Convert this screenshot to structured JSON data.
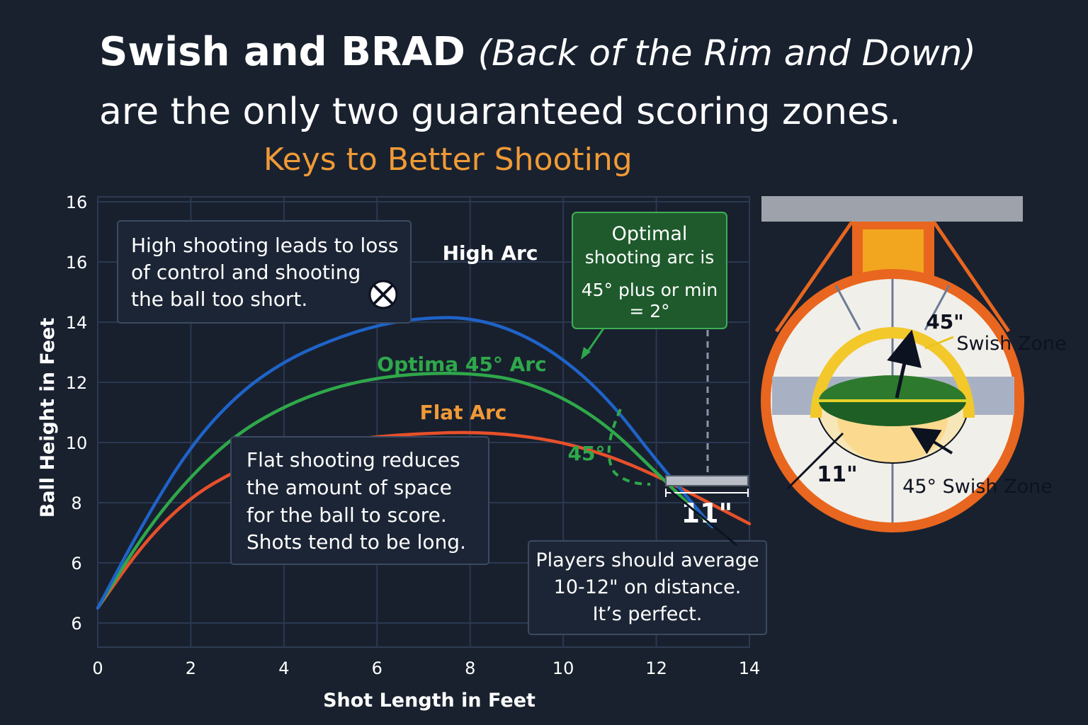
{
  "header": {
    "title_bold": "Swish and BRAD",
    "title_italic": "(Back of the Rim and Down)",
    "title_line2": "are the only two guaranteed scoring zones.",
    "subtitle": "Keys to Better Shooting"
  },
  "colors": {
    "background": "#19212f",
    "grid": "#2a3850",
    "high": "#1f63c8",
    "optimal": "#2fa84a",
    "flat": "#e8502a",
    "orange_text": "#f09a36",
    "green_box": "#1e5a2c",
    "rim": "#e8661f",
    "swish_zone": "#f2c82a"
  },
  "chart_data": {
    "type": "line",
    "xlabel": "Shot Length in Feet",
    "ylabel": "Ball Height in Feet",
    "xlim": [
      0,
      14
    ],
    "x_ticks": [
      "0",
      "2",
      "4",
      "6",
      "8",
      "10",
      "12",
      "14"
    ],
    "y_tick_labels": [
      "6",
      "6",
      "8",
      "10",
      "12",
      "14",
      "16",
      "16"
    ],
    "grid": true,
    "series": [
      {
        "name": "High Arc",
        "color_key": "high",
        "points": [
          [
            0,
            6.5
          ],
          [
            1,
            9.4
          ],
          [
            2,
            11.9
          ],
          [
            3,
            13.6
          ],
          [
            4,
            14.7
          ],
          [
            5,
            15.4
          ],
          [
            6,
            15.9
          ],
          [
            7,
            16.15
          ],
          [
            8,
            16.15
          ],
          [
            9,
            15.7
          ],
          [
            10,
            14.8
          ],
          [
            11,
            13.4
          ],
          [
            12,
            11.4
          ],
          [
            13.2,
            9.2
          ]
        ]
      },
      {
        "name": "Optima 45° Arc",
        "color_key": "optimal",
        "points": [
          [
            0,
            6.5
          ],
          [
            1,
            9.0
          ],
          [
            2,
            10.9
          ],
          [
            3,
            12.3
          ],
          [
            4,
            13.2
          ],
          [
            5,
            13.8
          ],
          [
            6,
            14.15
          ],
          [
            7,
            14.3
          ],
          [
            8,
            14.3
          ],
          [
            9,
            14.1
          ],
          [
            10,
            13.5
          ],
          [
            11,
            12.5
          ],
          [
            12,
            11.0
          ],
          [
            13.2,
            9.2
          ]
        ]
      },
      {
        "name": "Flat Arc",
        "color_key": "flat",
        "points": [
          [
            0,
            6.5
          ],
          [
            1,
            8.7
          ],
          [
            2,
            10.2
          ],
          [
            3,
            11.1
          ],
          [
            4,
            11.7
          ],
          [
            5,
            12.0
          ],
          [
            6,
            12.2
          ],
          [
            7,
            12.3
          ],
          [
            8,
            12.35
          ],
          [
            9,
            12.25
          ],
          [
            10,
            12.0
          ],
          [
            11,
            11.55
          ],
          [
            12,
            10.9
          ],
          [
            13,
            10.1
          ],
          [
            14,
            9.3
          ]
        ]
      }
    ],
    "annotations": {
      "high_note": [
        "High shooting leads to loss",
        "of control and shooting",
        "the ball too short."
      ],
      "flat_note": [
        "Flat shooting reduces",
        "the amount of space",
        "for the ball to score.",
        "Shots tend to be long."
      ],
      "optimal_note": [
        "Optimal",
        "shooting arc is",
        "45° plus or min",
        "= 2°"
      ],
      "players_note": [
        "Players should average",
        "10-12\" on distance.",
        "It’s perfect."
      ],
      "angle_label": "45°",
      "distance_label": "11\""
    }
  },
  "rim_diagram": {
    "top_label": "45\"",
    "swish_zone_label": "Swish Zone",
    "bottom_swish_label": "45° Swish Zone",
    "distance_label": "11\""
  }
}
